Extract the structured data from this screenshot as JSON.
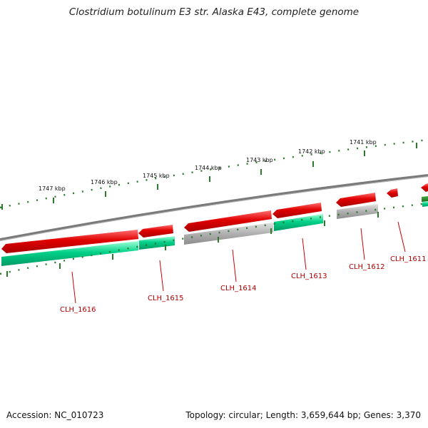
{
  "title": "Clostridium botulinum E3 str. Alaska E43, complete genome",
  "footer": {
    "accession": "Accession: NC_010723",
    "stats": "Topology: circular; Length: 3,659,644 bp; Genes: 3,370"
  },
  "colors": {
    "forward_cds": "#e00000",
    "reverse_cds": "#00c878",
    "gray_feature": "#a8a8a8",
    "backbone": "#7a7a7a",
    "tick": "#2b7a2b",
    "label": "#b30000"
  },
  "kbp_labels": [
    "1747 kbp",
    "1746 kbp",
    "1745 kbp",
    "1744 kbp",
    "1743 kbp",
    "1742 kbp",
    "1741 kbp"
  ],
  "gene_labels": [
    "CLH_1616",
    "CLH_1615",
    "CLH_1614",
    "CLH_1613",
    "CLH_1612",
    "CLH_1611"
  ]
}
